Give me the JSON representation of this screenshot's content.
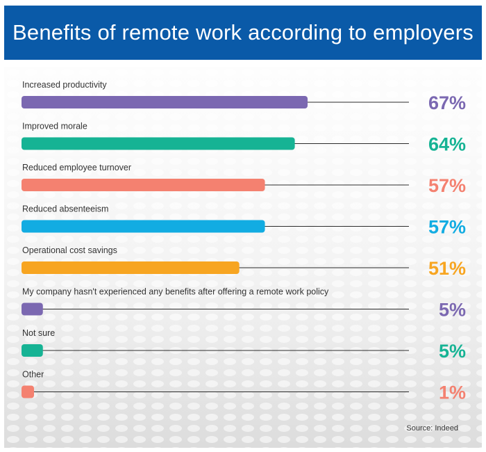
{
  "header": {
    "title": "Benefits of remote work according to employers"
  },
  "chart_data": {
    "type": "bar",
    "orientation": "horizontal",
    "title": "Benefits of remote work according to employers",
    "categories": [
      "Increased productivity",
      "Improved morale",
      "Reduced employee turnover",
      "Reduced absenteeism",
      "Operational cost savings",
      "My company hasn't experienced any benefits after offering a remote work policy",
      "Not sure",
      "Other"
    ],
    "values": [
      67,
      64,
      57,
      57,
      51,
      5,
      5,
      1
    ],
    "value_labels": [
      "67%",
      "64%",
      "57%",
      "57%",
      "51%",
      "5%",
      "5%",
      "1%"
    ],
    "colors": [
      "#7b68b1",
      "#16b394",
      "#f48170",
      "#12ace2",
      "#f7a521",
      "#7b68b1",
      "#16b394",
      "#f48170"
    ],
    "xlim": [
      0,
      100
    ],
    "grid": false,
    "source": "Source: Indeed"
  }
}
